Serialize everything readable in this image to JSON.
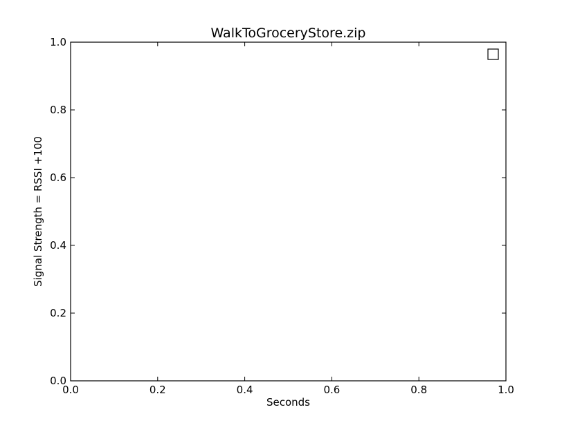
{
  "chart_data": {
    "type": "scatter",
    "title": "WalkToGroceryStore.zip",
    "xlabel": "Seconds",
    "ylabel": "Signal Strength  = RSSI +100",
    "xlim": [
      0.0,
      1.0
    ],
    "ylim": [
      0.0,
      1.0
    ],
    "x_ticks": [
      "0.0",
      "0.2",
      "0.4",
      "0.6",
      "0.8",
      "1.0"
    ],
    "y_ticks": [
      "0.0",
      "0.2",
      "0.4",
      "0.6",
      "0.8",
      "1.0"
    ],
    "grid": false,
    "legend": {
      "placement": "top-right",
      "marker": "square-outline",
      "entries": []
    },
    "series": []
  }
}
